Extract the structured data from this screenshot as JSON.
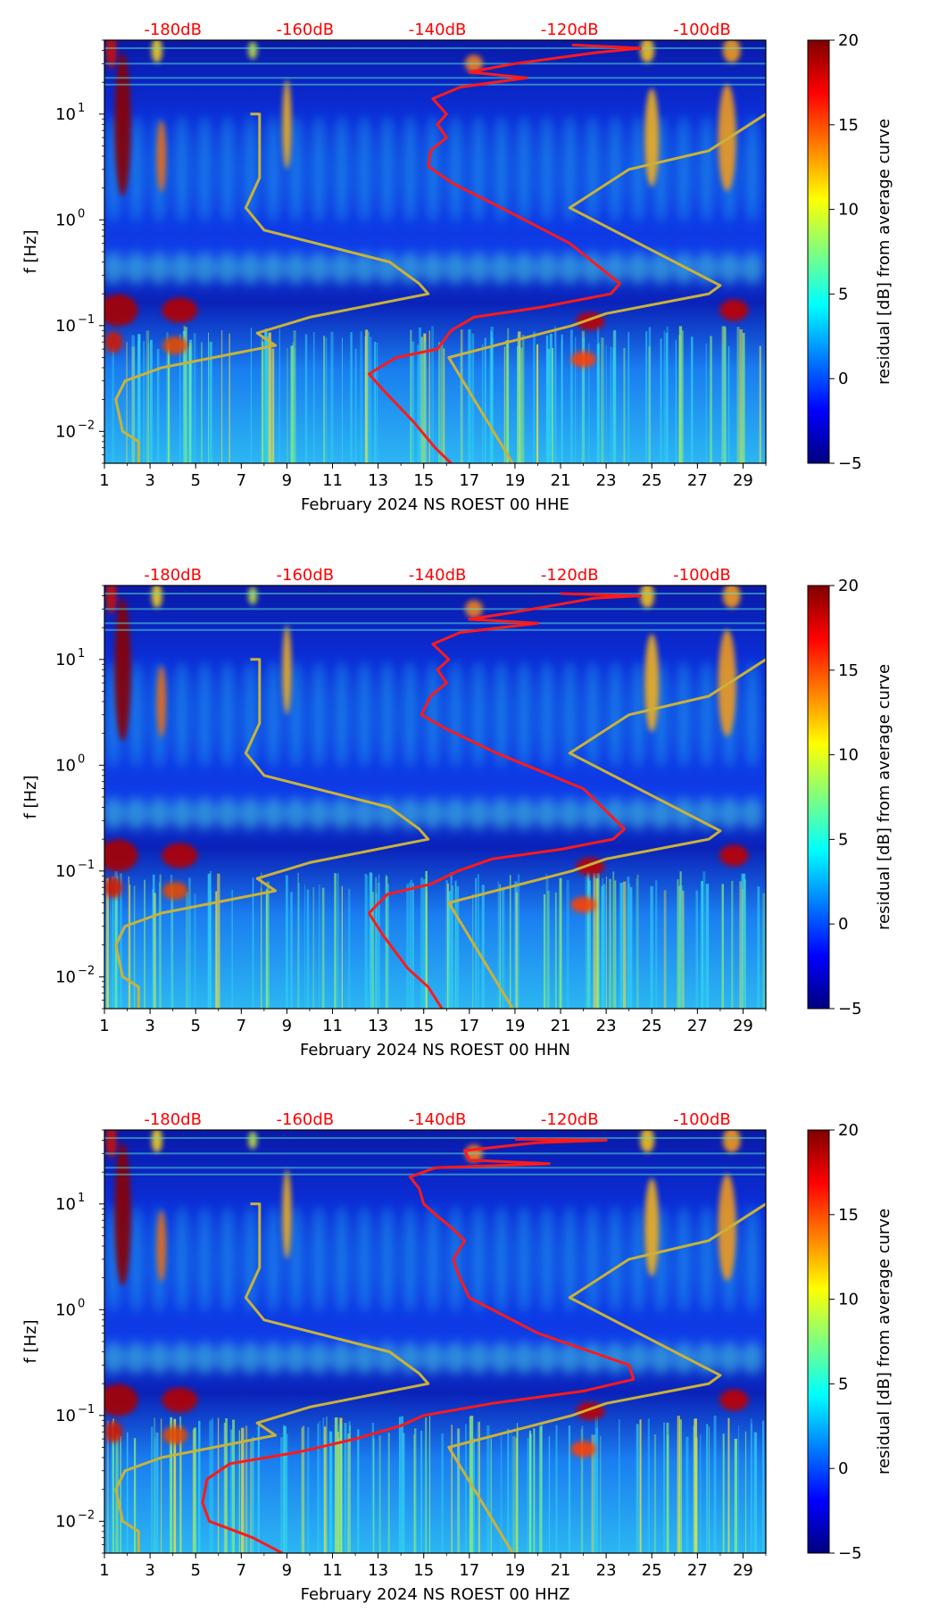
{
  "colors": {
    "curve_red": "#ff1a1a",
    "curve_olive": "#c9b23a",
    "top_label": "#ff0000",
    "cmap": [
      "#00007f",
      "#0000ff",
      "#007fff",
      "#00ffff",
      "#7fff7f",
      "#ffff00",
      "#ff7f00",
      "#ff0000",
      "#7f0000"
    ]
  },
  "chart_data": [
    {
      "type": "heatmap",
      "title": "",
      "xlabel": "February 2024 NS ROEST 00 HHE",
      "ylabel": "f [Hz]",
      "colorbar_label": "residual [dB] from average curve",
      "x_ticks": [
        1,
        3,
        5,
        7,
        9,
        11,
        13,
        15,
        17,
        19,
        21,
        23,
        25,
        27,
        29
      ],
      "xlim": [
        1,
        30
      ],
      "y_ticks": [
        {
          "value": 0.01,
          "base": "10",
          "exp": "−2"
        },
        {
          "value": 0.1,
          "base": "10",
          "exp": "−1"
        },
        {
          "value": 1,
          "base": "10",
          "exp": "0"
        },
        {
          "value": 10,
          "base": "10",
          "exp": "1"
        }
      ],
      "ylim": [
        0.005,
        50
      ],
      "top_axis": {
        "labels": [
          "-180dB",
          "-160dB",
          "-140dB",
          "-120dB",
          "-100dB"
        ],
        "positions": [
          4.0,
          9.8,
          15.6,
          21.4,
          27.2
        ]
      },
      "colorbar": {
        "range": [
          -5,
          20
        ],
        "ticks": [
          -5,
          0,
          5,
          10,
          15,
          20
        ]
      },
      "series": [
        {
          "name": "red-curve",
          "points": [
            [
              16.2,
              0.005
            ],
            [
              15.5,
              0.007
            ],
            [
              14.6,
              0.012
            ],
            [
              13.2,
              0.025
            ],
            [
              12.6,
              0.035
            ],
            [
              13.8,
              0.05
            ],
            [
              15.6,
              0.06
            ],
            [
              16.2,
              0.09
            ],
            [
              17.2,
              0.12
            ],
            [
              20.2,
              0.15
            ],
            [
              23.2,
              0.2
            ],
            [
              23.6,
              0.25
            ],
            [
              21.4,
              0.6
            ],
            [
              18.4,
              1.3
            ],
            [
              16.3,
              2.2
            ],
            [
              15.2,
              3.2
            ],
            [
              15.3,
              4.5
            ],
            [
              16.0,
              6
            ],
            [
              15.6,
              8
            ],
            [
              16.0,
              10
            ],
            [
              15.4,
              14
            ],
            [
              16.6,
              18
            ],
            [
              19.5,
              22
            ],
            [
              17.0,
              25
            ],
            [
              19.0,
              30
            ],
            [
              22.5,
              38
            ],
            [
              24.5,
              42
            ],
            [
              21.5,
              45
            ]
          ]
        },
        {
          "name": "olive-curve",
          "points": [
            [
              2.5,
              0.005
            ],
            [
              2.5,
              0.008
            ],
            [
              1.8,
              0.01
            ],
            [
              1.5,
              0.02
            ],
            [
              1.9,
              0.03
            ],
            [
              3.5,
              0.04
            ],
            [
              8.5,
              0.065
            ],
            [
              7.7,
              0.085
            ],
            [
              10,
              0.12
            ],
            [
              15.2,
              0.2
            ],
            [
              14.8,
              0.25
            ],
            [
              13.5,
              0.4
            ],
            [
              8,
              0.8
            ],
            [
              7.2,
              1.3
            ],
            [
              7.8,
              2.5
            ],
            [
              7.8,
              10
            ],
            [
              7.4,
              10
            ]
          ]
        },
        {
          "name": "olive-curve-right",
          "points": [
            [
              18.9,
              0.005
            ],
            [
              16.1,
              0.05
            ],
            [
              21.5,
              0.1
            ],
            [
              23.0,
              0.13
            ],
            [
              27.5,
              0.2
            ],
            [
              28.0,
              0.24
            ],
            [
              21.4,
              1.3
            ],
            [
              24.0,
              3.0
            ],
            [
              27.5,
              4.5
            ],
            [
              30,
              10
            ]
          ]
        }
      ]
    },
    {
      "type": "heatmap",
      "title": "",
      "xlabel": "February 2024 NS ROEST 00 HHN",
      "ylabel": "f [Hz]",
      "colorbar_label": "residual [dB] from average curve",
      "x_ticks": [
        1,
        3,
        5,
        7,
        9,
        11,
        13,
        15,
        17,
        19,
        21,
        23,
        25,
        27,
        29
      ],
      "xlim": [
        1,
        30
      ],
      "y_ticks": [
        {
          "value": 0.01,
          "base": "10",
          "exp": "−2"
        },
        {
          "value": 0.1,
          "base": "10",
          "exp": "−1"
        },
        {
          "value": 1,
          "base": "10",
          "exp": "0"
        },
        {
          "value": 10,
          "base": "10",
          "exp": "1"
        }
      ],
      "ylim": [
        0.005,
        50
      ],
      "top_axis": {
        "labels": [
          "-180dB",
          "-160dB",
          "-140dB",
          "-120dB",
          "-100dB"
        ],
        "positions": [
          4.0,
          9.8,
          15.6,
          21.4,
          27.2
        ]
      },
      "colorbar": {
        "range": [
          -5,
          20
        ],
        "ticks": [
          -5,
          0,
          5,
          10,
          15,
          20
        ]
      },
      "series": [
        {
          "name": "red-curve",
          "points": [
            [
              15.8,
              0.005
            ],
            [
              15.2,
              0.008
            ],
            [
              14.3,
              0.012
            ],
            [
              13.2,
              0.025
            ],
            [
              12.6,
              0.04
            ],
            [
              13.4,
              0.06
            ],
            [
              15.3,
              0.075
            ],
            [
              16.5,
              0.1
            ],
            [
              18.0,
              0.13
            ],
            [
              21.0,
              0.16
            ],
            [
              23.3,
              0.2
            ],
            [
              23.8,
              0.25
            ],
            [
              22.0,
              0.6
            ],
            [
              18.2,
              1.3
            ],
            [
              16.0,
              2.2
            ],
            [
              14.9,
              3.0
            ],
            [
              15.3,
              4.5
            ],
            [
              16.0,
              6
            ],
            [
              15.6,
              8
            ],
            [
              16.1,
              10
            ],
            [
              15.4,
              14
            ],
            [
              16.6,
              18
            ],
            [
              20.0,
              22
            ],
            [
              17.0,
              24
            ],
            [
              19.0,
              28
            ],
            [
              22.5,
              38
            ],
            [
              24.5,
              40
            ],
            [
              21.0,
              42
            ]
          ]
        },
        {
          "name": "olive-curve",
          "points": [
            [
              2.5,
              0.005
            ],
            [
              2.5,
              0.008
            ],
            [
              1.8,
              0.01
            ],
            [
              1.5,
              0.02
            ],
            [
              1.9,
              0.03
            ],
            [
              3.5,
              0.04
            ],
            [
              8.5,
              0.065
            ],
            [
              7.7,
              0.085
            ],
            [
              10,
              0.12
            ],
            [
              15.2,
              0.2
            ],
            [
              14.8,
              0.25
            ],
            [
              13.5,
              0.4
            ],
            [
              8,
              0.8
            ],
            [
              7.2,
              1.3
            ],
            [
              7.8,
              2.5
            ],
            [
              7.8,
              10
            ],
            [
              7.4,
              10
            ]
          ]
        },
        {
          "name": "olive-curve-right",
          "points": [
            [
              18.9,
              0.005
            ],
            [
              16.1,
              0.05
            ],
            [
              21.5,
              0.1
            ],
            [
              23.0,
              0.13
            ],
            [
              27.5,
              0.2
            ],
            [
              28.0,
              0.24
            ],
            [
              21.4,
              1.3
            ],
            [
              24.0,
              3.0
            ],
            [
              27.5,
              4.5
            ],
            [
              30,
              10
            ]
          ]
        }
      ]
    },
    {
      "type": "heatmap",
      "title": "",
      "xlabel": "February 2024 NS ROEST 00 HHZ",
      "ylabel": "f [Hz]",
      "colorbar_label": "residual [dB] from average curve",
      "x_ticks": [
        1,
        3,
        5,
        7,
        9,
        11,
        13,
        15,
        17,
        19,
        21,
        23,
        25,
        27,
        29
      ],
      "xlim": [
        1,
        30
      ],
      "y_ticks": [
        {
          "value": 0.01,
          "base": "10",
          "exp": "−2"
        },
        {
          "value": 0.1,
          "base": "10",
          "exp": "−1"
        },
        {
          "value": 1,
          "base": "10",
          "exp": "0"
        },
        {
          "value": 10,
          "base": "10",
          "exp": "1"
        }
      ],
      "ylim": [
        0.005,
        50
      ],
      "top_axis": {
        "labels": [
          "-180dB",
          "-160dB",
          "-140dB",
          "-120dB",
          "-100dB"
        ],
        "positions": [
          4.0,
          9.8,
          15.6,
          21.4,
          27.2
        ]
      },
      "colorbar": {
        "range": [
          -5,
          20
        ],
        "ticks": [
          -5,
          0,
          5,
          10,
          15,
          20
        ]
      },
      "series": [
        {
          "name": "red-curve",
          "points": [
            [
              8.8,
              0.005
            ],
            [
              7.5,
              0.007
            ],
            [
              5.6,
              0.01
            ],
            [
              5.3,
              0.015
            ],
            [
              5.5,
              0.025
            ],
            [
              6.5,
              0.035
            ],
            [
              9.5,
              0.045
            ],
            [
              12.0,
              0.06
            ],
            [
              14.0,
              0.08
            ],
            [
              15.0,
              0.1
            ],
            [
              18.0,
              0.13
            ],
            [
              22.0,
              0.17
            ],
            [
              24.2,
              0.22
            ],
            [
              24.0,
              0.3
            ],
            [
              20.0,
              0.6
            ],
            [
              17.0,
              1.3
            ],
            [
              16.5,
              2.2
            ],
            [
              16.3,
              3.0
            ],
            [
              16.8,
              4.5
            ],
            [
              16.2,
              6
            ],
            [
              15.5,
              8
            ],
            [
              15.0,
              10
            ],
            [
              14.8,
              14
            ],
            [
              14.4,
              18
            ],
            [
              15.5,
              22
            ],
            [
              20.5,
              24
            ],
            [
              17.0,
              26
            ],
            [
              16.8,
              32
            ],
            [
              20.0,
              38
            ],
            [
              23.0,
              40
            ],
            [
              19.0,
              41
            ]
          ]
        },
        {
          "name": "olive-curve",
          "points": [
            [
              2.5,
              0.005
            ],
            [
              2.5,
              0.008
            ],
            [
              1.8,
              0.01
            ],
            [
              1.5,
              0.02
            ],
            [
              1.9,
              0.03
            ],
            [
              3.5,
              0.04
            ],
            [
              8.5,
              0.065
            ],
            [
              7.7,
              0.085
            ],
            [
              10,
              0.12
            ],
            [
              15.2,
              0.2
            ],
            [
              14.8,
              0.25
            ],
            [
              13.5,
              0.4
            ],
            [
              8,
              0.8
            ],
            [
              7.2,
              1.3
            ],
            [
              7.8,
              2.5
            ],
            [
              7.8,
              10
            ],
            [
              7.4,
              10
            ]
          ]
        },
        {
          "name": "olive-curve-right",
          "points": [
            [
              18.9,
              0.005
            ],
            [
              16.1,
              0.05
            ],
            [
              21.5,
              0.1
            ],
            [
              23.0,
              0.13
            ],
            [
              27.5,
              0.2
            ],
            [
              28.0,
              0.24
            ],
            [
              21.4,
              1.3
            ],
            [
              24.0,
              3.0
            ],
            [
              27.5,
              4.5
            ],
            [
              30,
              10
            ]
          ]
        }
      ]
    }
  ]
}
